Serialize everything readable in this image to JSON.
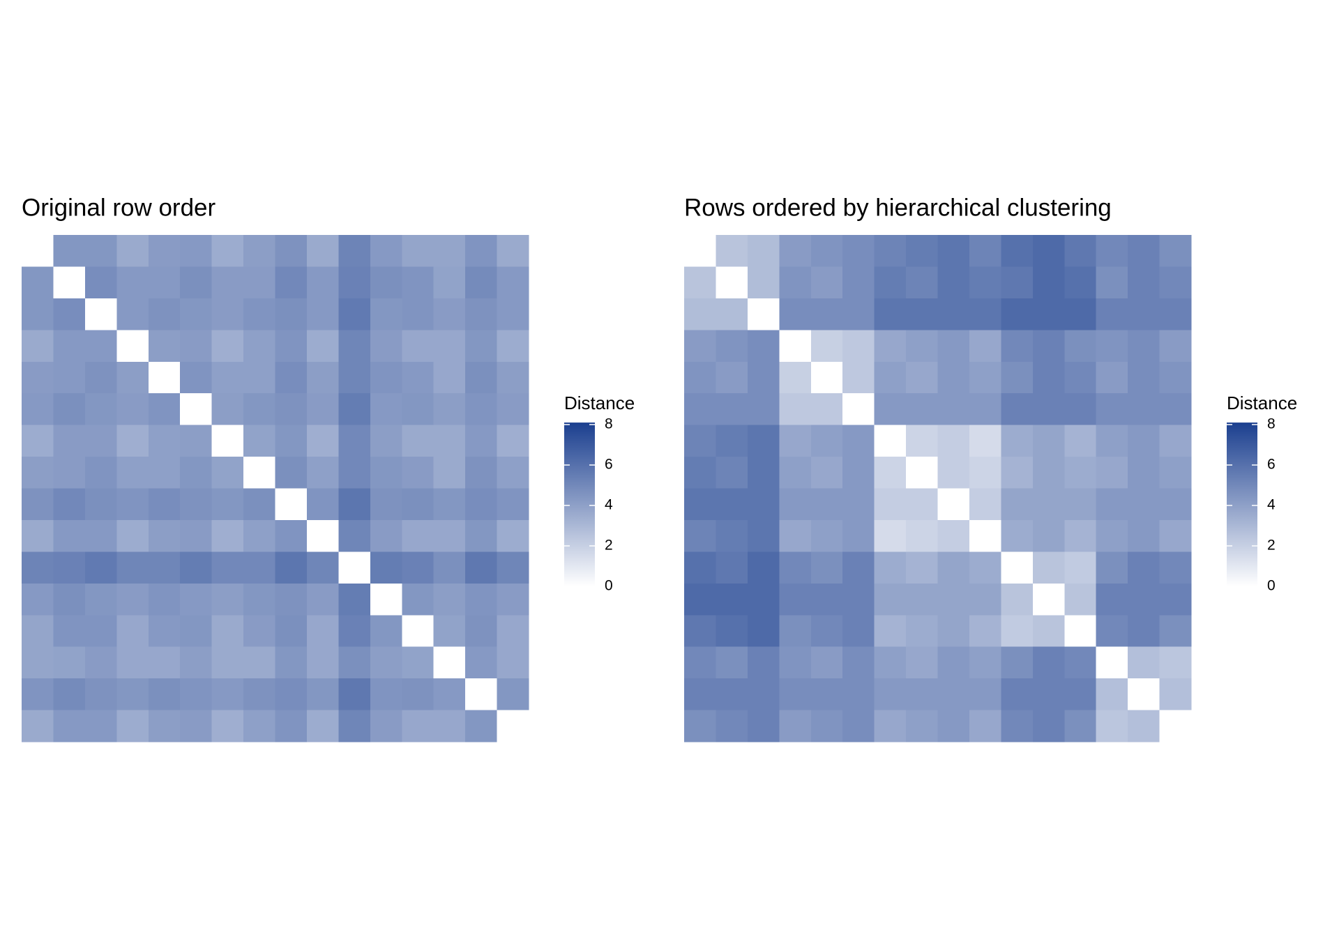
{
  "chart_data": [
    {
      "type": "heatmap",
      "title": "Original row order",
      "legend_title": "Distance",
      "clim": [
        0,
        8.1
      ],
      "colorbar_ticks": [
        0,
        2,
        4,
        6,
        8
      ],
      "colors": [
        "#ffffff",
        "#1b3f8f"
      ],
      "z": [
        [
          0,
          4.4,
          4.4,
          3.6,
          4.2,
          4.3,
          3.5,
          4.1,
          4.6,
          3.6,
          5.2,
          4.3,
          3.8,
          3.8,
          4.5,
          3.6
        ],
        [
          4.4,
          0,
          4.8,
          4.3,
          4.3,
          4.7,
          4.2,
          4.2,
          5.0,
          4.3,
          5.3,
          4.7,
          4.5,
          3.9,
          4.9,
          4.3
        ],
        [
          4.4,
          4.8,
          0,
          4.3,
          4.6,
          4.4,
          4.2,
          4.5,
          4.7,
          4.3,
          5.6,
          4.4,
          4.5,
          4.2,
          4.6,
          4.3
        ],
        [
          3.6,
          4.3,
          4.3,
          0,
          4.1,
          4.2,
          3.4,
          4.0,
          4.5,
          3.5,
          5.1,
          4.2,
          3.7,
          3.7,
          4.4,
          3.5
        ],
        [
          4.2,
          4.3,
          4.6,
          4.1,
          0,
          4.5,
          4.0,
          4.0,
          4.8,
          4.1,
          5.1,
          4.5,
          4.3,
          3.7,
          4.7,
          4.1
        ],
        [
          4.3,
          4.7,
          4.4,
          4.2,
          4.5,
          0,
          4.1,
          4.4,
          4.6,
          4.2,
          5.5,
          4.3,
          4.4,
          4.1,
          4.5,
          4.2
        ],
        [
          3.5,
          4.2,
          4.2,
          3.4,
          4.0,
          4.1,
          0,
          3.9,
          4.4,
          3.4,
          5.0,
          4.1,
          3.6,
          3.6,
          4.3,
          3.4
        ],
        [
          4.1,
          4.2,
          4.5,
          4.0,
          4.0,
          4.4,
          3.9,
          0,
          4.7,
          4.0,
          5.0,
          4.4,
          4.2,
          3.6,
          4.6,
          4.0
        ],
        [
          4.6,
          5.0,
          4.7,
          4.5,
          4.8,
          4.6,
          4.4,
          4.7,
          0,
          4.5,
          5.8,
          4.6,
          4.7,
          4.4,
          4.8,
          4.5
        ],
        [
          3.6,
          4.3,
          4.3,
          3.5,
          4.1,
          4.2,
          3.4,
          4.0,
          4.5,
          0,
          5.1,
          4.2,
          3.7,
          3.7,
          4.4,
          3.5
        ],
        [
          5.2,
          5.3,
          5.6,
          5.1,
          5.1,
          5.5,
          5.0,
          5.0,
          5.8,
          5.1,
          0,
          5.5,
          5.3,
          4.7,
          5.7,
          5.1
        ],
        [
          4.3,
          4.7,
          4.4,
          4.2,
          4.5,
          4.3,
          4.1,
          4.4,
          4.6,
          4.2,
          5.5,
          0,
          4.4,
          4.1,
          4.5,
          4.2
        ],
        [
          3.8,
          4.5,
          4.5,
          3.7,
          4.3,
          4.4,
          3.6,
          4.2,
          4.7,
          3.7,
          5.3,
          4.4,
          0,
          3.9,
          4.6,
          3.7
        ],
        [
          3.8,
          3.9,
          4.2,
          3.7,
          3.7,
          4.1,
          3.6,
          3.6,
          4.4,
          3.7,
          4.7,
          4.1,
          3.9,
          0,
          4.3,
          3.7
        ],
        [
          4.5,
          4.9,
          4.6,
          4.4,
          4.7,
          4.5,
          4.3,
          4.6,
          4.8,
          4.4,
          5.7,
          4.5,
          4.6,
          4.3,
          0,
          4.4
        ],
        [
          3.6,
          4.3,
          4.3,
          3.5,
          4.1,
          4.2,
          3.4,
          4.0,
          4.5,
          3.5,
          5.1,
          4.2,
          3.7,
          3.7,
          4.4,
          0
        ]
      ]
    },
    {
      "type": "heatmap",
      "title": "Rows ordered by hierarchical clustering",
      "legend_title": "Distance",
      "clim": [
        0,
        8.1
      ],
      "colorbar_ticks": [
        0,
        2,
        4,
        6,
        8
      ],
      "colors": [
        "#ffffff",
        "#1b3f8f"
      ],
      "z": [
        [
          0,
          2.5,
          2.8,
          4.2,
          4.5,
          4.8,
          5.2,
          5.5,
          5.8,
          5.2,
          6.0,
          6.3,
          5.7,
          5.0,
          5.3,
          4.7
        ],
        [
          2.5,
          0,
          2.8,
          4.5,
          4.2,
          4.8,
          5.5,
          5.2,
          5.8,
          5.5,
          5.7,
          6.3,
          6.0,
          4.7,
          5.3,
          5.0
        ],
        [
          2.8,
          2.8,
          0,
          4.8,
          4.8,
          4.8,
          5.8,
          5.8,
          5.8,
          5.8,
          6.3,
          6.3,
          6.3,
          5.3,
          5.3,
          5.3
        ],
        [
          4.2,
          4.5,
          4.8,
          0,
          2.0,
          2.3,
          3.7,
          4.0,
          4.3,
          3.7,
          5.0,
          5.3,
          4.7,
          4.5,
          4.8,
          4.2
        ],
        [
          4.5,
          4.2,
          4.8,
          2.0,
          0,
          2.3,
          4.0,
          3.7,
          4.3,
          4.0,
          4.7,
          5.3,
          5.0,
          4.2,
          4.8,
          4.5
        ],
        [
          4.8,
          4.8,
          4.8,
          2.3,
          2.3,
          0,
          4.3,
          4.3,
          4.3,
          4.3,
          5.3,
          5.3,
          5.3,
          4.8,
          4.8,
          4.8
        ],
        [
          5.2,
          5.5,
          5.8,
          3.7,
          4.0,
          4.3,
          0,
          1.8,
          2.1,
          1.5,
          3.5,
          3.8,
          3.2,
          4.0,
          4.3,
          3.7
        ],
        [
          5.5,
          5.2,
          5.8,
          4.0,
          3.7,
          4.3,
          1.8,
          0,
          2.1,
          1.8,
          3.2,
          3.8,
          3.5,
          3.7,
          4.3,
          4.0
        ],
        [
          5.8,
          5.8,
          5.8,
          4.3,
          4.3,
          4.3,
          2.1,
          2.1,
          0,
          2.1,
          3.8,
          3.8,
          3.8,
          4.3,
          4.3,
          4.3
        ],
        [
          5.2,
          5.5,
          5.8,
          3.7,
          4.0,
          4.3,
          1.5,
          1.8,
          2.1,
          0,
          3.5,
          3.8,
          3.2,
          4.0,
          4.3,
          3.7
        ],
        [
          6.0,
          5.7,
          6.3,
          5.0,
          4.7,
          5.3,
          3.5,
          3.2,
          3.8,
          3.5,
          0,
          2.5,
          2.2,
          4.7,
          5.3,
          5.0
        ],
        [
          6.3,
          6.3,
          6.3,
          5.3,
          5.3,
          5.3,
          3.8,
          3.8,
          3.8,
          3.8,
          2.5,
          0,
          2.5,
          5.3,
          5.3,
          5.3
        ],
        [
          5.7,
          6.0,
          6.3,
          4.7,
          5.0,
          5.3,
          3.2,
          3.5,
          3.8,
          3.2,
          2.2,
          2.5,
          0,
          5.0,
          5.3,
          4.7
        ],
        [
          5.0,
          4.7,
          5.3,
          4.5,
          4.2,
          4.8,
          4.0,
          3.7,
          4.3,
          4.0,
          4.7,
          5.3,
          5.0,
          0,
          2.7,
          2.4
        ],
        [
          5.3,
          5.3,
          5.3,
          4.8,
          4.8,
          4.8,
          4.3,
          4.3,
          4.3,
          4.3,
          5.3,
          5.3,
          5.3,
          2.7,
          0,
          2.7
        ],
        [
          4.7,
          5.0,
          5.3,
          4.2,
          4.5,
          4.8,
          3.7,
          4.0,
          4.3,
          3.7,
          5.0,
          5.3,
          4.7,
          2.4,
          2.7,
          0
        ]
      ]
    }
  ]
}
